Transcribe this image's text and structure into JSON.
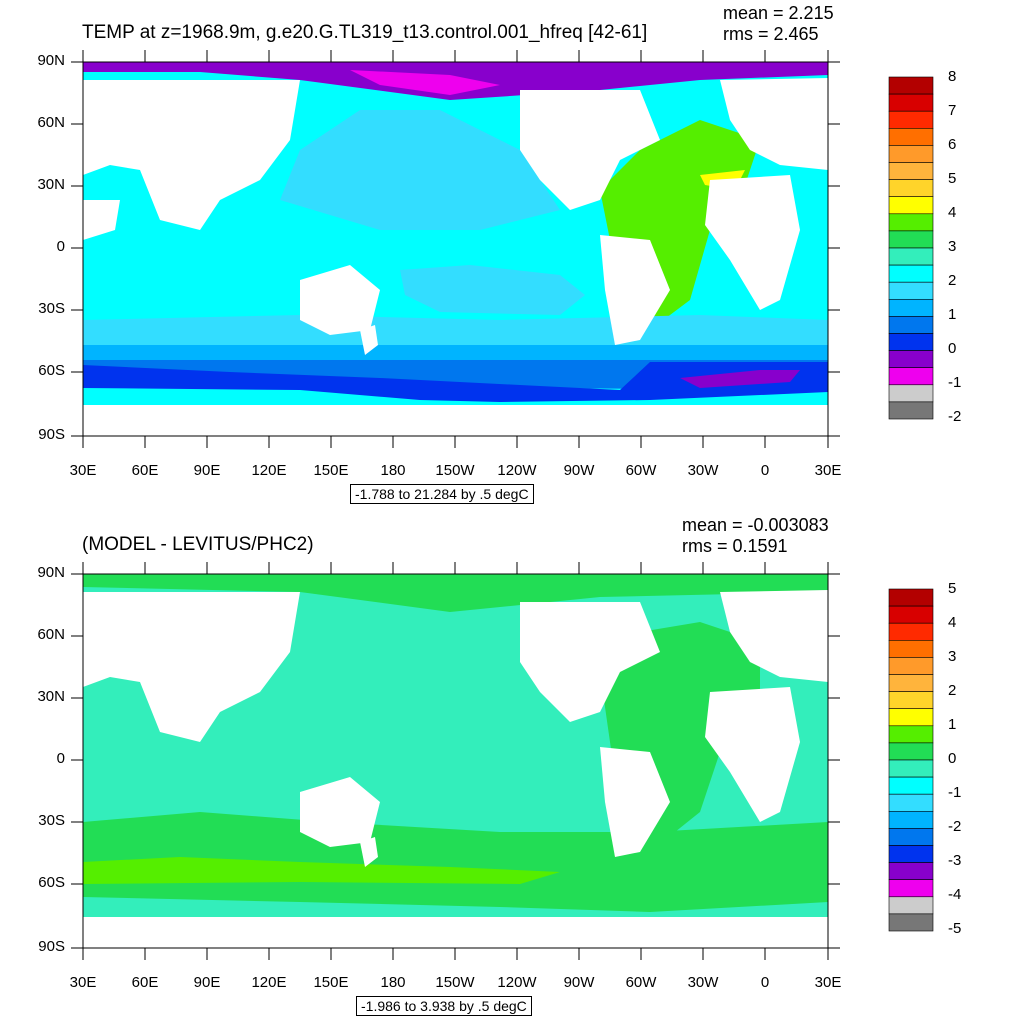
{
  "panels": [
    {
      "title": "TEMP at z=1968.9m, g.e20.G.TL319_t13.control.001_hfreq [42-61]",
      "mean": "mean = 2.215",
      "rms": "rms = 2.465",
      "range_label": "-1.788 to 21.284 by .5 degC",
      "lat_labels": [
        "90N",
        "60N",
        "30N",
        "0",
        "30S",
        "60S",
        "90S"
      ],
      "lon_labels": [
        "30E",
        "60E",
        "90E",
        "120E",
        "150E",
        "180",
        "150W",
        "120W",
        "90W",
        "60W",
        "30W",
        "0",
        "30E"
      ],
      "colorbar_labels": [
        "8",
        "7",
        "6",
        "5",
        "4",
        "3",
        "2",
        "1",
        "0",
        "-1",
        "-2"
      ],
      "colorbar_colors": [
        "#b30000",
        "#d80000",
        "#ff2a00",
        "#ff6f00",
        "#ff9a2a",
        "#ffb43c",
        "#ffd42a",
        "#ffff00",
        "#55ee00",
        "#22dd55",
        "#33eebb",
        "#00ffff",
        "#33ddff",
        "#00b4ff",
        "#0077ee",
        "#0033ee",
        "#8800cc",
        "#ee00ee",
        "#cccccc",
        "#777777"
      ]
    },
    {
      "title": "(MODEL - LEVITUS/PHC2)",
      "mean": "mean = -0.003083",
      "rms": "rms = 0.1591",
      "range_label": "-1.986 to 3.938 by .5 degC",
      "lat_labels": [
        "90N",
        "60N",
        "30N",
        "0",
        "30S",
        "60S",
        "90S"
      ],
      "lon_labels": [
        "30E",
        "60E",
        "90E",
        "120E",
        "150E",
        "180",
        "150W",
        "120W",
        "90W",
        "60W",
        "30W",
        "0",
        "30E"
      ],
      "colorbar_labels": [
        "5",
        "4",
        "3",
        "2",
        "1",
        "0",
        "-1",
        "-2",
        "-3",
        "-4",
        "-5"
      ],
      "colorbar_colors": [
        "#b30000",
        "#d80000",
        "#ff2a00",
        "#ff6f00",
        "#ff9a2a",
        "#ffb43c",
        "#ffd42a",
        "#ffff00",
        "#55ee00",
        "#22dd55",
        "#33eebb",
        "#00ffff",
        "#33ddff",
        "#00b4ff",
        "#0077ee",
        "#0033ee",
        "#8800cc",
        "#ee00ee",
        "#cccccc",
        "#777777"
      ]
    }
  ],
  "colors": {
    "ocean_top_main": "#00ffff",
    "ocean_bottom_main": "#33eebb",
    "land": "#ffffff",
    "arctic_top": "#8800cc",
    "southern_top": "#0033ee",
    "atlantic_top": "#55ee00",
    "bottom_green": "#22dd55"
  }
}
